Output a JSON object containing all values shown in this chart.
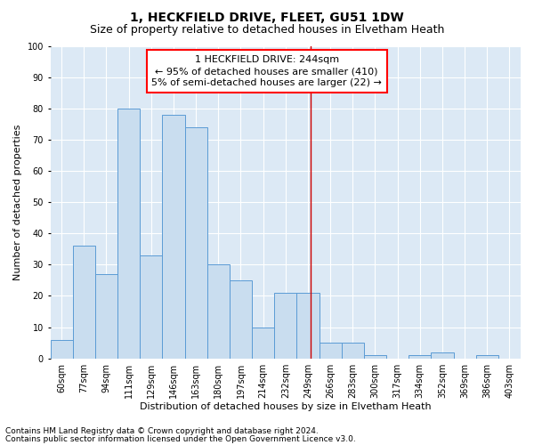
{
  "title": "1, HECKFIELD DRIVE, FLEET, GU51 1DW",
  "subtitle": "Size of property relative to detached houses in Elvetham Heath",
  "xlabel": "Distribution of detached houses by size in Elvetham Heath",
  "ylabel": "Number of detached properties",
  "footnote1": "Contains HM Land Registry data © Crown copyright and database right 2024.",
  "footnote2": "Contains public sector information licensed under the Open Government Licence v3.0.",
  "annotation_line1": "  1 HECKFIELD DRIVE: 244sqm  ",
  "annotation_line2": "← 95% of detached houses are smaller (410)",
  "annotation_line3": "5% of semi-detached houses are larger (22) →",
  "bar_color": "#c9ddef",
  "bar_edge_color": "#5b9bd5",
  "vline_color": "#cc0000",
  "background_color": "#dce9f5",
  "categories": [
    "60sqm",
    "77sqm",
    "94sqm",
    "111sqm",
    "129sqm",
    "146sqm",
    "163sqm",
    "180sqm",
    "197sqm",
    "214sqm",
    "232sqm",
    "249sqm",
    "266sqm",
    "283sqm",
    "300sqm",
    "317sqm",
    "334sqm",
    "352sqm",
    "369sqm",
    "386sqm",
    "403sqm"
  ],
  "bin_left": [
    51.5,
    68.5,
    85.5,
    102.5,
    119.5,
    136.5,
    153.5,
    170.5,
    187.5,
    204.5,
    221.5,
    238.5,
    255.5,
    272.5,
    289.5,
    306.5,
    323.5,
    340.5,
    357.5,
    374.5,
    391.5
  ],
  "bin_width": 17,
  "values": [
    6,
    36,
    27,
    80,
    33,
    78,
    74,
    30,
    25,
    10,
    21,
    21,
    5,
    5,
    1,
    0,
    1,
    2,
    0,
    1,
    0
  ],
  "vline_x": 249.0,
  "ylim": [
    0,
    100
  ],
  "yticks": [
    0,
    10,
    20,
    30,
    40,
    50,
    60,
    70,
    80,
    90,
    100
  ],
  "title_fontsize": 10,
  "subtitle_fontsize": 9,
  "axis_label_fontsize": 8,
  "tick_fontsize": 7,
  "annotation_fontsize": 8,
  "footnote_fontsize": 6.5
}
